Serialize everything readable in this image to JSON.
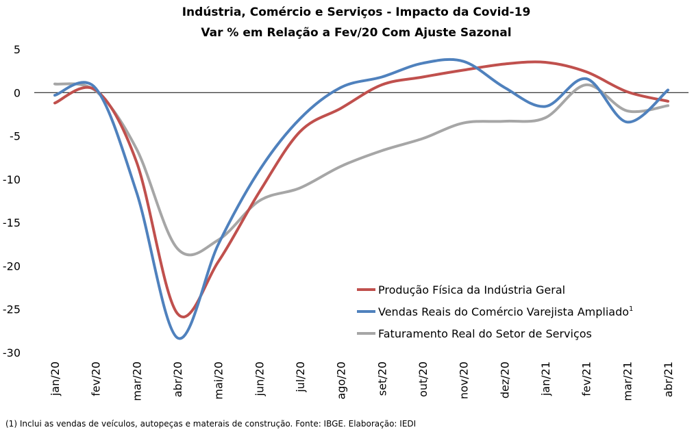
{
  "chart_data": {
    "type": "line",
    "title": "Indústria, Comércio e Serviços - Impacto  da Covid-19",
    "subtitle": "Var % em Relação a Fev/20 Com Ajuste Sazonal",
    "xlabel": "",
    "ylabel": "",
    "ylim": [
      -30,
      5
    ],
    "yticks": [
      5,
      0,
      -5,
      -10,
      -15,
      -20,
      -25,
      -30
    ],
    "categories": [
      "jan/20",
      "fev/20",
      "mar/20",
      "abr/20",
      "mai/20",
      "jun/20",
      "jul/20",
      "ago/20",
      "set/20",
      "out/20",
      "nov/20",
      "dez/20",
      "jan/21",
      "fev/21",
      "mar/21",
      "abr/21"
    ],
    "grid": false,
    "zero_line": true,
    "legend_position": "lower-right",
    "smooth": true,
    "series": [
      {
        "name": "Produção Física da Indústria Geral",
        "color": "#c0504d",
        "values": [
          -1.2,
          0.3,
          -8.0,
          -25.5,
          -19.5,
          -11.5,
          -4.5,
          -1.8,
          0.9,
          1.8,
          2.6,
          3.3,
          3.5,
          2.4,
          0.1,
          -1.0
        ]
      },
      {
        "name": "Vendas Reais do Comércio Varejista Ampliado",
        "name_superscript": "1",
        "color": "#4f81bd",
        "values": [
          -0.3,
          0.5,
          -11.5,
          -28.3,
          -17.5,
          -9.0,
          -3.0,
          0.6,
          1.8,
          3.4,
          3.6,
          0.6,
          -1.6,
          1.6,
          -3.4,
          0.3
        ]
      },
      {
        "name": "Faturamento Real do Setor de Serviços",
        "color": "#a6a6a6",
        "values": [
          1.0,
          0.2,
          -6.5,
          -18.0,
          -17.0,
          -12.5,
          -11.0,
          -8.5,
          -6.7,
          -5.3,
          -3.5,
          -3.3,
          -2.9,
          0.9,
          -2.1,
          -1.5
        ]
      }
    ]
  },
  "footnote": "(1) Inclui as vendas de veículos, autopeças e materais de construção. Fonte: IBGE. Elaboração: IEDI"
}
